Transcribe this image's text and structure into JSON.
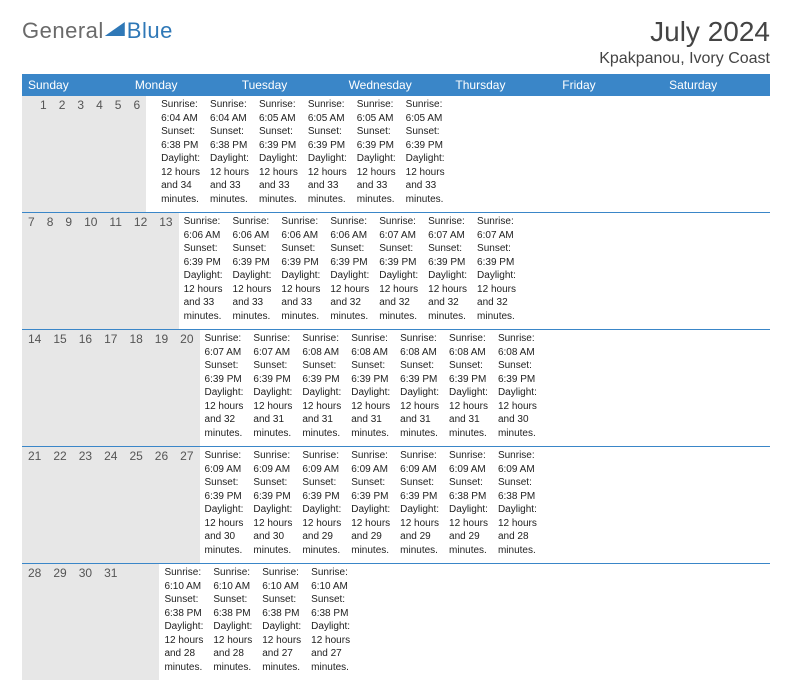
{
  "brand": {
    "part1": "General",
    "part2": "Blue"
  },
  "header": {
    "month_title": "July 2024",
    "location": "Kpakpanou, Ivory Coast"
  },
  "style": {
    "header_bg": "#3a86c8",
    "header_text": "#ffffff",
    "daynum_bg": "#e7e7e7",
    "week_border": "#3a86c8",
    "body_text": "#222222",
    "page_bg": "#ffffff",
    "font_family": "Arial, Helvetica, sans-serif",
    "title_fontsize_pt": 21,
    "location_fontsize_pt": 12,
    "dow_fontsize_pt": 9,
    "body_fontsize_pt": 7.5
  },
  "days_of_week": [
    "Sunday",
    "Monday",
    "Tuesday",
    "Wednesday",
    "Thursday",
    "Friday",
    "Saturday"
  ],
  "first_weekday_index": 1,
  "month_length": 31,
  "days": [
    {
      "n": 1,
      "sunrise": "6:04 AM",
      "sunset": "6:38 PM",
      "daylight": "12 hours and 34 minutes."
    },
    {
      "n": 2,
      "sunrise": "6:04 AM",
      "sunset": "6:38 PM",
      "daylight": "12 hours and 33 minutes."
    },
    {
      "n": 3,
      "sunrise": "6:05 AM",
      "sunset": "6:39 PM",
      "daylight": "12 hours and 33 minutes."
    },
    {
      "n": 4,
      "sunrise": "6:05 AM",
      "sunset": "6:39 PM",
      "daylight": "12 hours and 33 minutes."
    },
    {
      "n": 5,
      "sunrise": "6:05 AM",
      "sunset": "6:39 PM",
      "daylight": "12 hours and 33 minutes."
    },
    {
      "n": 6,
      "sunrise": "6:05 AM",
      "sunset": "6:39 PM",
      "daylight": "12 hours and 33 minutes."
    },
    {
      "n": 7,
      "sunrise": "6:06 AM",
      "sunset": "6:39 PM",
      "daylight": "12 hours and 33 minutes."
    },
    {
      "n": 8,
      "sunrise": "6:06 AM",
      "sunset": "6:39 PM",
      "daylight": "12 hours and 33 minutes."
    },
    {
      "n": 9,
      "sunrise": "6:06 AM",
      "sunset": "6:39 PM",
      "daylight": "12 hours and 33 minutes."
    },
    {
      "n": 10,
      "sunrise": "6:06 AM",
      "sunset": "6:39 PM",
      "daylight": "12 hours and 32 minutes."
    },
    {
      "n": 11,
      "sunrise": "6:07 AM",
      "sunset": "6:39 PM",
      "daylight": "12 hours and 32 minutes."
    },
    {
      "n": 12,
      "sunrise": "6:07 AM",
      "sunset": "6:39 PM",
      "daylight": "12 hours and 32 minutes."
    },
    {
      "n": 13,
      "sunrise": "6:07 AM",
      "sunset": "6:39 PM",
      "daylight": "12 hours and 32 minutes."
    },
    {
      "n": 14,
      "sunrise": "6:07 AM",
      "sunset": "6:39 PM",
      "daylight": "12 hours and 32 minutes."
    },
    {
      "n": 15,
      "sunrise": "6:07 AM",
      "sunset": "6:39 PM",
      "daylight": "12 hours and 31 minutes."
    },
    {
      "n": 16,
      "sunrise": "6:08 AM",
      "sunset": "6:39 PM",
      "daylight": "12 hours and 31 minutes."
    },
    {
      "n": 17,
      "sunrise": "6:08 AM",
      "sunset": "6:39 PM",
      "daylight": "12 hours and 31 minutes."
    },
    {
      "n": 18,
      "sunrise": "6:08 AM",
      "sunset": "6:39 PM",
      "daylight": "12 hours and 31 minutes."
    },
    {
      "n": 19,
      "sunrise": "6:08 AM",
      "sunset": "6:39 PM",
      "daylight": "12 hours and 31 minutes."
    },
    {
      "n": 20,
      "sunrise": "6:08 AM",
      "sunset": "6:39 PM",
      "daylight": "12 hours and 30 minutes."
    },
    {
      "n": 21,
      "sunrise": "6:09 AM",
      "sunset": "6:39 PM",
      "daylight": "12 hours and 30 minutes."
    },
    {
      "n": 22,
      "sunrise": "6:09 AM",
      "sunset": "6:39 PM",
      "daylight": "12 hours and 30 minutes."
    },
    {
      "n": 23,
      "sunrise": "6:09 AM",
      "sunset": "6:39 PM",
      "daylight": "12 hours and 29 minutes."
    },
    {
      "n": 24,
      "sunrise": "6:09 AM",
      "sunset": "6:39 PM",
      "daylight": "12 hours and 29 minutes."
    },
    {
      "n": 25,
      "sunrise": "6:09 AM",
      "sunset": "6:39 PM",
      "daylight": "12 hours and 29 minutes."
    },
    {
      "n": 26,
      "sunrise": "6:09 AM",
      "sunset": "6:38 PM",
      "daylight": "12 hours and 29 minutes."
    },
    {
      "n": 27,
      "sunrise": "6:09 AM",
      "sunset": "6:38 PM",
      "daylight": "12 hours and 28 minutes."
    },
    {
      "n": 28,
      "sunrise": "6:10 AM",
      "sunset": "6:38 PM",
      "daylight": "12 hours and 28 minutes."
    },
    {
      "n": 29,
      "sunrise": "6:10 AM",
      "sunset": "6:38 PM",
      "daylight": "12 hours and 28 minutes."
    },
    {
      "n": 30,
      "sunrise": "6:10 AM",
      "sunset": "6:38 PM",
      "daylight": "12 hours and 27 minutes."
    },
    {
      "n": 31,
      "sunrise": "6:10 AM",
      "sunset": "6:38 PM",
      "daylight": "12 hours and 27 minutes."
    }
  ],
  "labels": {
    "sunrise_prefix": "Sunrise: ",
    "sunset_prefix": "Sunset: ",
    "daylight_prefix": "Daylight: "
  }
}
